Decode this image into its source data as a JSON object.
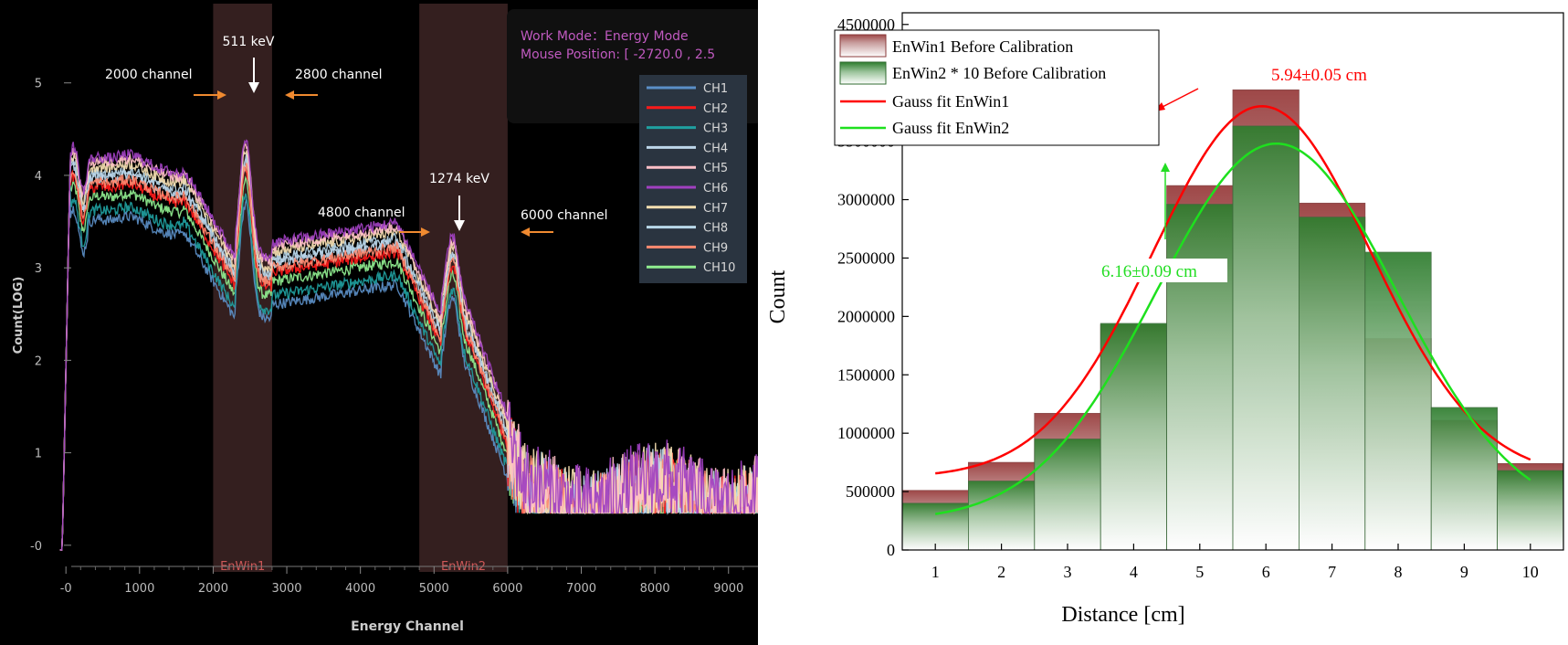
{
  "left_chart": {
    "ylabel": "Count(LOG)",
    "xlabel": "Energy Channel",
    "xlim": [
      -300,
      9400
    ],
    "ylim": [
      -0.15,
      5.6
    ],
    "x_ticks": [
      "-0",
      "1000",
      "2000",
      "3000",
      "4000",
      "5000",
      "6000",
      "7000",
      "8000",
      "9000"
    ],
    "x_tick_values": [
      0,
      1000,
      2000,
      3000,
      4000,
      5000,
      6000,
      7000,
      8000,
      9000
    ],
    "y_ticks": [
      "-0",
      "1",
      "2",
      "3",
      "4",
      "5"
    ],
    "y_tick_values": [
      0,
      1,
      2,
      3,
      4,
      5
    ],
    "info": {
      "work_mode": "Work Mode：Energy Mode",
      "mouse_position": "Mouse Position: [ -2720.0 , 2.5"
    },
    "windows": [
      {
        "name": "EnWin1",
        "start": 2000,
        "end": 2800
      },
      {
        "name": "EnWin2",
        "start": 4800,
        "end": 6000
      }
    ],
    "annotations": {
      "peak_511": "511 keV",
      "peak_1274": "1274 keV",
      "ch2000": "2000 channel",
      "ch2800": "2800 channel",
      "ch4800": "4800 channel",
      "ch6000": "6000 channel"
    },
    "legend": [
      {
        "label": "CH1",
        "color": "#5b8fc7"
      },
      {
        "label": "CH2",
        "color": "#ff1a1a"
      },
      {
        "label": "CH3",
        "color": "#1fa0a0"
      },
      {
        "label": "CH4",
        "color": "#bcd6ea"
      },
      {
        "label": "CH5",
        "color": "#ffc0c8"
      },
      {
        "label": "CH6",
        "color": "#a040c0"
      },
      {
        "label": "CH7",
        "color": "#f5deb0"
      },
      {
        "label": "CH8",
        "color": "#b8d8ea"
      },
      {
        "label": "CH9",
        "color": "#ff8a70"
      },
      {
        "label": "CH10",
        "color": "#90ee90"
      }
    ],
    "series_offsets": [
      -0.35,
      0.0,
      -0.25,
      0.1,
      0.28,
      0.32,
      0.22,
      0.15,
      0.05,
      -0.1
    ]
  },
  "chart_data": {
    "type": "bar",
    "xlabel": "Distance [cm]",
    "ylabel": "Count",
    "categories": [
      "1",
      "2",
      "3",
      "4",
      "5",
      "6",
      "7",
      "8",
      "9",
      "10"
    ],
    "x": [
      1,
      2,
      3,
      4,
      5,
      6,
      7,
      8,
      9,
      10
    ],
    "ylim": [
      0,
      4600000
    ],
    "y_ticks": [
      "0",
      "500000",
      "1000000",
      "1500000",
      "2000000",
      "2500000",
      "3000000",
      "3500000",
      "4000000",
      "4500000"
    ],
    "y_tick_values": [
      0,
      500000,
      1000000,
      1500000,
      2000000,
      2500000,
      3000000,
      3500000,
      4000000,
      4500000
    ],
    "series": [
      {
        "name": "EnWin1 Before Calibration",
        "values": [
          510000,
          750000,
          1170000,
          1930000,
          3120000,
          3940000,
          2970000,
          1810000,
          1110000,
          740000
        ],
        "color": "#a04a4a"
      },
      {
        "name": "EnWin2 * 10 Before Calibration",
        "values": [
          400000,
          590000,
          950000,
          1940000,
          2960000,
          3630000,
          2850000,
          2550000,
          1220000,
          680000
        ],
        "color": "#3a8a3a"
      },
      {
        "name": "Gauss fit EnWin1",
        "type": "line",
        "color": "#ff0000",
        "peak": 3800000,
        "mean": 5.94,
        "sigma": 1.65,
        "base": 620000
      },
      {
        "name": "Gauss fit EnWin2",
        "type": "line",
        "color": "#1ee01e",
        "peak": 3480000,
        "mean": 6.16,
        "sigma": 1.82,
        "base": 250000
      }
    ],
    "annotations": {
      "fit1": "5.94±0.05 cm",
      "fit2": "6.16±0.09 cm"
    },
    "legend_position": "top-left"
  }
}
